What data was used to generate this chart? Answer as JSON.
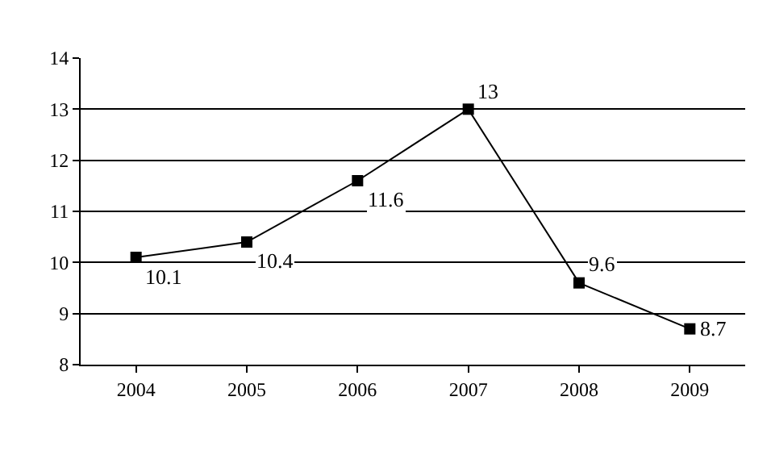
{
  "chart_data": {
    "type": "line",
    "categories": [
      "2004",
      "2005",
      "2006",
      "2007",
      "2008",
      "2009"
    ],
    "values": [
      10.1,
      10.4,
      11.6,
      13,
      9.6,
      8.7
    ],
    "color": "#000000",
    "marker": "square",
    "line_style": "solid",
    "data_labels": true,
    "ylim": [
      8,
      14
    ],
    "yticks": [
      8,
      9,
      10,
      11,
      12,
      13,
      14
    ],
    "grid": "y"
  }
}
